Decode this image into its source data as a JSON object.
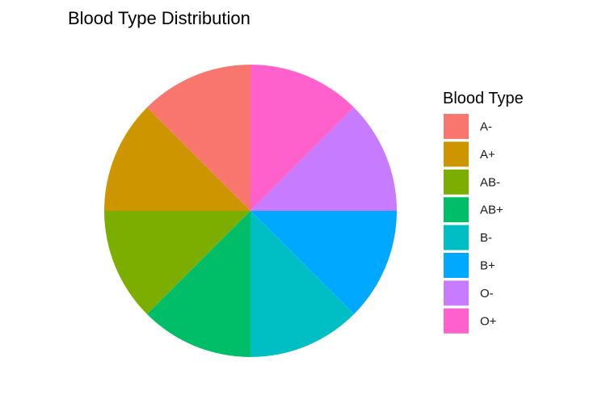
{
  "chart_data": {
    "type": "pie",
    "title": "Blood Type Distribution",
    "legend": {
      "title": "Blood Type",
      "position": "right"
    },
    "categories": [
      "A-",
      "A+",
      "AB-",
      "AB+",
      "B-",
      "B+",
      "O-",
      "O+"
    ],
    "values": [
      1,
      1,
      1,
      1,
      1,
      1,
      1,
      1
    ],
    "colors": [
      "#F8766D",
      "#CD9600",
      "#7CAE00",
      "#00BE67",
      "#00BFC4",
      "#00A9FF",
      "#C77CFF",
      "#FF61CC"
    ],
    "grid": false
  }
}
